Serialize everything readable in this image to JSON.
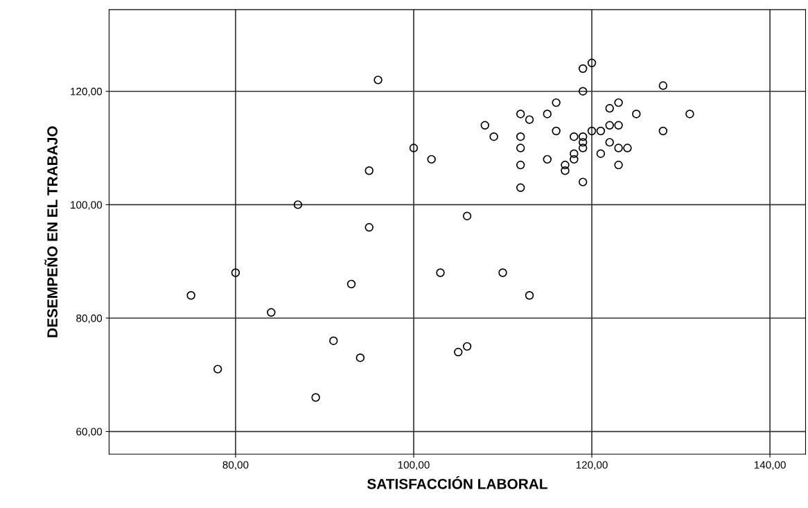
{
  "chart_data": {
    "type": "scatter",
    "xlabel": "SATISFACCIÓN LABORAL",
    "ylabel": "DESEMPEÑO EN EL TRABAJO",
    "xlim": [
      65.8,
      144
    ],
    "ylim": [
      56,
      134.4
    ],
    "xticks": [
      {
        "value": 80,
        "label": "80,00"
      },
      {
        "value": 100,
        "label": "100,00"
      },
      {
        "value": 120,
        "label": "120,00"
      },
      {
        "value": 140,
        "label": "140,00"
      }
    ],
    "yticks": [
      {
        "value": 60,
        "label": "60,00"
      },
      {
        "value": 80,
        "label": "80,00"
      },
      {
        "value": 100,
        "label": "100,00"
      },
      {
        "value": 120,
        "label": "120,00"
      }
    ],
    "grid": true,
    "marker": "circle",
    "series": [
      {
        "color": "#000000",
        "x": [
          87,
          95,
          106,
          80,
          75,
          93,
          84,
          103,
          110,
          113,
          91,
          94,
          106,
          105,
          78,
          89,
          96,
          100,
          102,
          95,
          108,
          120,
          119,
          119,
          128,
          116,
          123,
          122,
          112,
          115,
          125,
          131,
          113,
          122,
          123,
          116,
          120,
          121,
          128,
          109,
          112,
          118,
          119,
          119,
          119,
          112,
          122,
          123,
          124,
          118,
          121,
          118,
          115,
          112,
          117,
          117,
          123,
          119,
          112
        ],
        "values": [
          100,
          96,
          98,
          88,
          84,
          86,
          81,
          88,
          88,
          84,
          76,
          73,
          75,
          74,
          71,
          66,
          122,
          110,
          108,
          106,
          114,
          125,
          124,
          120,
          121,
          118,
          118,
          117,
          116,
          116,
          116,
          116,
          115,
          114,
          114,
          113,
          113,
          113,
          113,
          112,
          112,
          112,
          112,
          111,
          110,
          110,
          111,
          110,
          110,
          109,
          109,
          108,
          108,
          107,
          107,
          106,
          107,
          104,
          103
        ]
      }
    ]
  }
}
